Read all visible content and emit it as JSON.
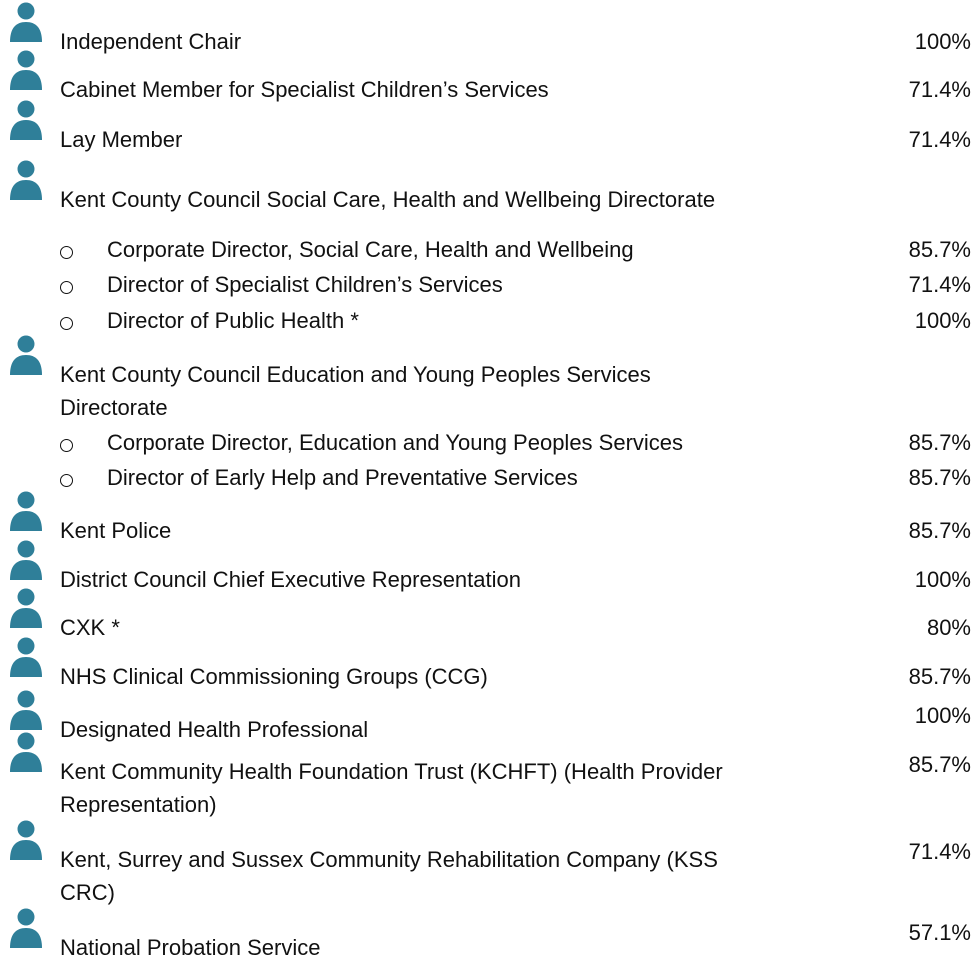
{
  "groups": [
    {
      "lines": [
        "Independent Chair"
      ],
      "value": "100%"
    },
    {
      "lines": [
        "Cabinet Member for Specialist Children’s Services"
      ],
      "value": "71.4%"
    },
    {
      "lines": [
        "Lay Member"
      ],
      "value": "71.4%"
    },
    {
      "lines": [
        "Kent County Council Social Care, Health and Wellbeing Directorate"
      ],
      "subitems": [
        {
          "label": "Corporate Director,  Social Care, Health and Wellbeing",
          "value": "85.7%"
        },
        {
          "label": "Director of Specialist Children’s Services",
          "value": "71.4%"
        },
        {
          "label": "Director of Public Health *",
          "value": "100%"
        }
      ]
    },
    {
      "lines": [
        "Kent County Council Education and Young Peoples Services",
        "Directorate"
      ],
      "subitems": [
        {
          "label": "Corporate Director, Education and Young Peoples Services",
          "value": "85.7%"
        },
        {
          "label": "Director of Early Help and Preventative Services",
          "value": "85.7%"
        }
      ]
    },
    {
      "lines": [
        "Kent Police"
      ],
      "value": "85.7%"
    },
    {
      "lines": [
        "District Council Chief Executive Representation"
      ],
      "value": "100%"
    },
    {
      "lines": [
        "CXK *"
      ],
      "value": "80%"
    },
    {
      "lines": [
        "NHS Clinical Commissioning Groups (CCG)"
      ],
      "value": "85.7%"
    },
    {
      "lines": [
        "Designated Health Professional"
      ],
      "value": "100%"
    },
    {
      "lines": [
        "Kent Community Health Foundation Trust (KCHFT) (Health Provider",
        "Representation)"
      ],
      "value": "85.7%"
    },
    {
      "lines": [
        "Kent, Surrey and Sussex Community Rehabilitation Company (KSS",
        "CRC)"
      ],
      "value": "71.4%"
    },
    {
      "lines": [
        "National Probation Service"
      ],
      "value": "57.1%"
    }
  ]
}
